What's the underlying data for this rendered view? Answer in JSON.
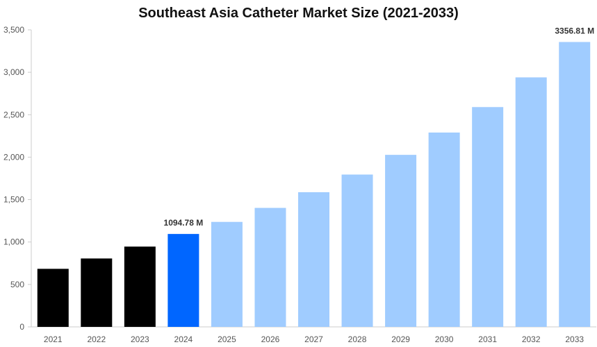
{
  "chart_data": {
    "type": "bar",
    "title": "Southeast Asia Catheter Market Size (2021-2033)",
    "xlabel": "",
    "ylabel": "",
    "categories": [
      "2021",
      "2022",
      "2023",
      "2024",
      "2025",
      "2026",
      "2027",
      "2028",
      "2029",
      "2030",
      "2031",
      "2032",
      "2033"
    ],
    "values": [
      684,
      806,
      946,
      1094.78,
      1237,
      1402,
      1587,
      1795,
      2027,
      2290,
      2590,
      2940,
      3356.81
    ],
    "bar_colors": [
      "#000000",
      "#000000",
      "#000000",
      "#0066ff",
      "#a0ccff",
      "#a0ccff",
      "#a0ccff",
      "#a0ccff",
      "#a0ccff",
      "#a0ccff",
      "#a0ccff",
      "#a0ccff",
      "#a0ccff"
    ],
    "ylim": [
      0,
      3500
    ],
    "yticks": [
      0,
      500,
      1000,
      1500,
      2000,
      2500,
      3000,
      3500
    ],
    "ytick_labels": [
      "0",
      "500",
      "1,000",
      "1,500",
      "2,000",
      "2,500",
      "3,000",
      "3,500"
    ],
    "annotations": [
      {
        "category": "2024",
        "text": "1094.78 M"
      },
      {
        "category": "2033",
        "text": "3356.81 M"
      }
    ],
    "grid": false,
    "legend": "none"
  }
}
